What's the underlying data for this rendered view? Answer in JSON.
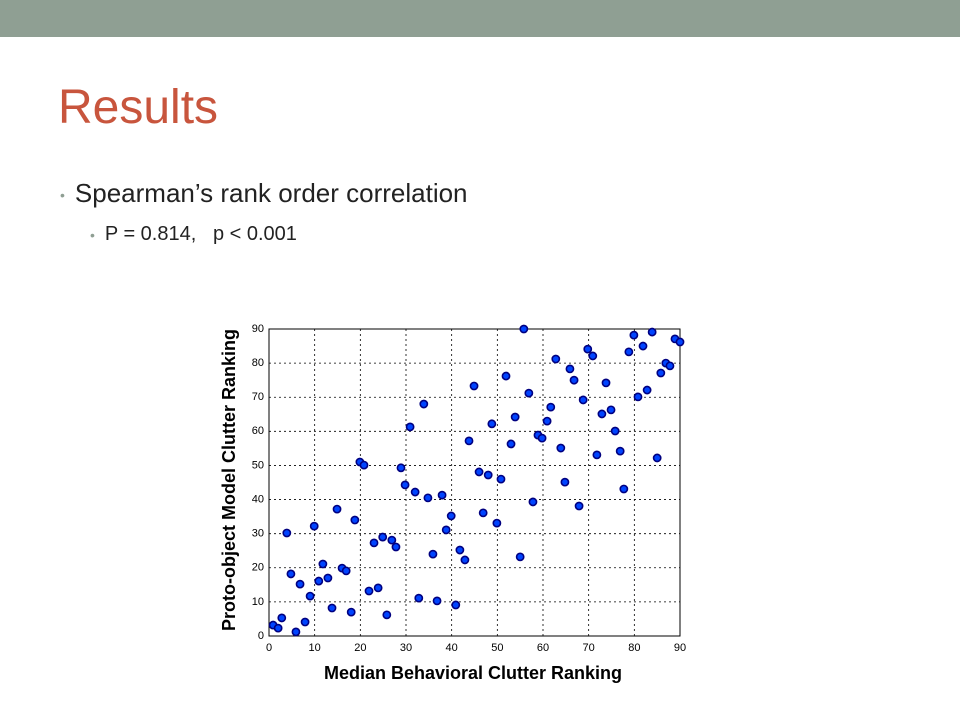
{
  "slide": {
    "title": "Results",
    "bullets": [
      "Spearman’s rank order correlation"
    ],
    "sub_bullets": [
      "P = 0.814,   p < 0.001"
    ]
  },
  "chart_data": {
    "type": "scatter",
    "xlabel": "Median Behavioral Clutter Ranking",
    "ylabel": "Proto-object Model Clutter Ranking",
    "xlim": [
      0,
      90
    ],
    "ylim": [
      0,
      90
    ],
    "xticks": [
      0,
      10,
      20,
      30,
      40,
      50,
      60,
      70,
      80,
      90
    ],
    "yticks": [
      0,
      10,
      20,
      30,
      40,
      50,
      60,
      70,
      80,
      90
    ],
    "grid": true,
    "color": "#0044ff",
    "edgecolor": "#000080",
    "x": [
      0.9,
      2,
      2.8,
      3.9,
      4.8,
      5.9,
      6.8,
      7.9,
      9,
      9.9,
      10.9,
      11.8,
      12.9,
      13.8,
      14.9,
      16,
      16.9,
      18,
      18.8,
      19.9,
      20.8,
      21.9,
      23,
      23.9,
      24.9,
      25.8,
      26.9,
      27.8,
      28.9,
      29.8,
      30.9,
      32,
      32.8,
      33.9,
      34.8,
      35.9,
      36.8,
      37.9,
      38.8,
      39.9,
      40.9,
      41.8,
      42.9,
      43.8,
      44.9,
      46,
      46.9,
      48,
      48.8,
      49.9,
      50.8,
      51.9,
      53,
      53.9,
      55,
      55.8,
      56.9,
      57.8,
      58.9,
      59.8,
      60.9,
      61.7,
      62.8,
      63.9,
      64.8,
      65.9,
      66.8,
      67.9,
      68.8,
      69.8,
      70.9,
      71.8,
      72.9,
      73.8,
      74.9,
      75.8,
      76.9,
      77.7,
      78.8,
      79.9,
      80.8,
      81.9,
      82.8,
      83.9,
      85,
      85.8,
      86.9,
      87.8,
      88.9,
      90
    ],
    "values": [
      3.2,
      2.3,
      5.3,
      30.2,
      18.2,
      1.2,
      15.2,
      4.1,
      11.7,
      32.2,
      16.1,
      21.1,
      17,
      8.2,
      37.2,
      19.9,
      19.1,
      7,
      34,
      51,
      50.1,
      13.2,
      27.3,
      14.1,
      29,
      6.2,
      28.1,
      26.1,
      49.3,
      44.3,
      61.3,
      42.2,
      11.1,
      68,
      40.5,
      24,
      10.3,
      41.3,
      31.1,
      35.2,
      9.1,
      25.2,
      22.3,
      57.2,
      73.3,
      48.1,
      36.1,
      47.2,
      62.2,
      33.1,
      46,
      76.2,
      56.3,
      64.2,
      23.2,
      90,
      71.2,
      39.3,
      58.9,
      58,
      63,
      67.1,
      81.2,
      55.1,
      45.1,
      78.3,
      75,
      38.1,
      69.2,
      84.1,
      82.1,
      53.1,
      65.1,
      74.2,
      66.3,
      60.1,
      54.2,
      43.1,
      83.3,
      88.2,
      70.1,
      85,
      72.1,
      89.1,
      52.2,
      77.1,
      80,
      79.2,
      87.1,
      86.2
    ]
  }
}
